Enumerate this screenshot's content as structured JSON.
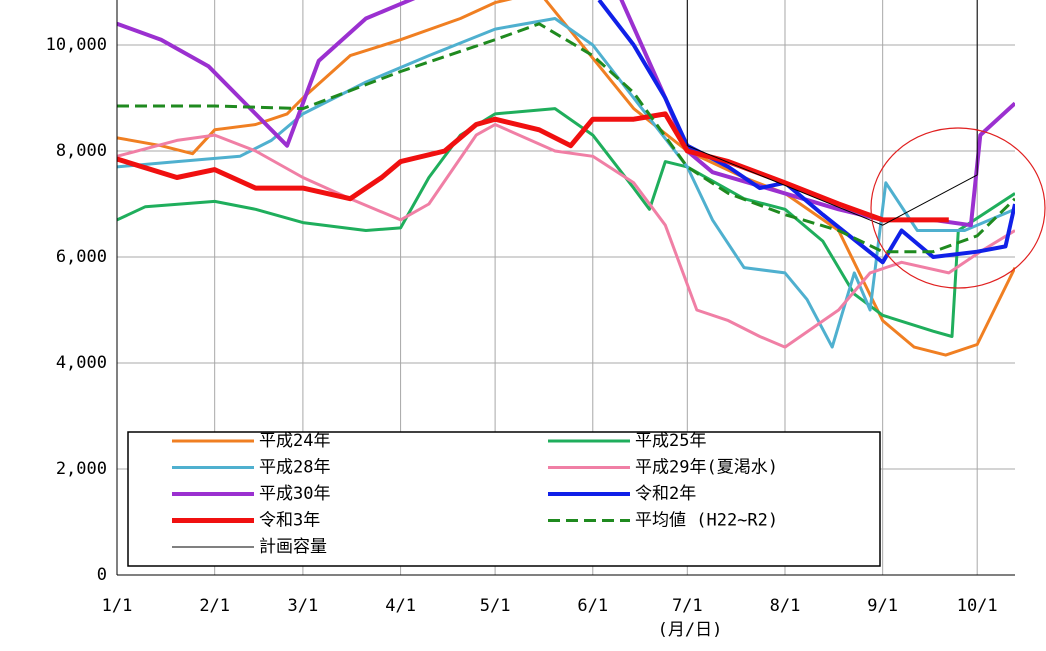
{
  "chart_data": {
    "type": "line",
    "x_unit_label": "(月/日)",
    "xlim": [
      1,
      286
    ],
    "xticks": [
      {
        "value": 1,
        "label": "1/1"
      },
      {
        "value": 32,
        "label": "2/1"
      },
      {
        "value": 60,
        "label": "3/1"
      },
      {
        "value": 91,
        "label": "4/1"
      },
      {
        "value": 121,
        "label": "5/1"
      },
      {
        "value": 152,
        "label": "6/1"
      },
      {
        "value": 182,
        "label": "7/1"
      },
      {
        "value": 213,
        "label": "8/1"
      },
      {
        "value": 244,
        "label": "9/1"
      },
      {
        "value": 274,
        "label": "10/1"
      }
    ],
    "ylim": [
      0,
      10850
    ],
    "yticks": [
      0,
      {
        "value": 2000,
        "label": "2,000"
      },
      {
        "value": 4000,
        "label": "4,000"
      },
      {
        "value": 6000,
        "label": "6,000"
      },
      {
        "value": 8000,
        "label": "8,000"
      },
      {
        "value": 10000,
        "label": "10,000"
      }
    ],
    "grid": true,
    "series": [
      {
        "name": "平成24年",
        "color": "#f07f22",
        "width": 3,
        "x": [
          1,
          15,
          25,
          32,
          45,
          55,
          60,
          75,
          91,
          110,
          121,
          135,
          165,
          182,
          200,
          213,
          230,
          244,
          254,
          264,
          274,
          286
        ],
        "values": [
          8250,
          8100,
          7950,
          8400,
          8500,
          8700,
          9000,
          9800,
          10100,
          10500,
          10800,
          11000,
          8800,
          8000,
          7500,
          7200,
          6500,
          4800,
          4300,
          4150,
          4350,
          5800
        ]
      },
      {
        "name": "平成25年",
        "color": "#1fae5c",
        "width": 3,
        "x": [
          1,
          10,
          32,
          45,
          60,
          80,
          91,
          100,
          110,
          121,
          140,
          152,
          165,
          170,
          175,
          182,
          200,
          213,
          225,
          235,
          244,
          260,
          266,
          268,
          286
        ],
        "values": [
          6700,
          6950,
          7050,
          6900,
          6650,
          6500,
          6550,
          7500,
          8300,
          8700,
          8800,
          8300,
          7300,
          6900,
          7800,
          7700,
          7100,
          6900,
          6300,
          5300,
          4900,
          4600,
          4500,
          6500,
          7200
        ]
      },
      {
        "name": "平成28年",
        "color": "#4fb0cf",
        "width": 3,
        "x": [
          1,
          20,
          40,
          50,
          60,
          80,
          100,
          121,
          140,
          152,
          165,
          182,
          190,
          200,
          213,
          220,
          228,
          235,
          240,
          245,
          255,
          270,
          286
        ],
        "values": [
          7700,
          7800,
          7900,
          8200,
          8700,
          9300,
          9800,
          10300,
          10500,
          10000,
          9000,
          7700,
          6700,
          5800,
          5700,
          5200,
          4300,
          5700,
          5000,
          7400,
          6500,
          6500,
          6900
        ]
      },
      {
        "name": "平成29年(夏渇水)",
        "color": "#f07fa5",
        "width": 3,
        "x": [
          1,
          20,
          32,
          45,
          60,
          75,
          91,
          100,
          115,
          121,
          140,
          152,
          165,
          175,
          185,
          195,
          205,
          213,
          230,
          240,
          250,
          265,
          275,
          286
        ],
        "values": [
          7900,
          8200,
          8300,
          8000,
          7500,
          7100,
          6700,
          7000,
          8300,
          8500,
          8000,
          7900,
          7400,
          6600,
          5000,
          4800,
          4500,
          4300,
          5000,
          5700,
          5900,
          5700,
          6100,
          6500
        ]
      },
      {
        "name": "平成30年",
        "color": "#9b30d0",
        "width": 4,
        "x": [
          1,
          15,
          30,
          45,
          55,
          65,
          80,
          100,
          160,
          175,
          182,
          190,
          213,
          230,
          244,
          260,
          272,
          275,
          286
        ],
        "values": [
          10400,
          10100,
          9600,
          8700,
          8100,
          9700,
          10500,
          11000,
          11000,
          9000,
          8000,
          7600,
          7200,
          6900,
          6700,
          6700,
          6600,
          8300,
          8900
        ]
      },
      {
        "name": "令和2年",
        "color": "#1020e8",
        "width": 4,
        "x": [
          154,
          165,
          175,
          182,
          195,
          205,
          213,
          225,
          244,
          250,
          260,
          274,
          283,
          286
        ],
        "values": [
          10850,
          10000,
          9000,
          8100,
          7700,
          7300,
          7400,
          6800,
          5900,
          6500,
          6000,
          6100,
          6200,
          7000
        ]
      },
      {
        "name": "令和3年",
        "color": "#f01010",
        "width": 5,
        "x": [
          1,
          20,
          32,
          45,
          60,
          75,
          85,
          91,
          105,
          115,
          121,
          135,
          145,
          152,
          165,
          175,
          182,
          195,
          213,
          230,
          244,
          260,
          265
        ],
        "values": [
          7850,
          7500,
          7650,
          7300,
          7300,
          7100,
          7500,
          7800,
          8000,
          8500,
          8600,
          8400,
          8100,
          8600,
          8600,
          8700,
          8000,
          7800,
          7400,
          7000,
          6700,
          6700,
          6700
        ]
      },
      {
        "name": "平均値 (H22~R2)",
        "color": "#1f8a1f",
        "width": 3,
        "dashed": true,
        "x": [
          1,
          32,
          60,
          91,
          121,
          135,
          152,
          165,
          182,
          195,
          213,
          230,
          244,
          260,
          274,
          286
        ],
        "values": [
          8850,
          8850,
          8800,
          9500,
          10100,
          10400,
          9800,
          9100,
          7700,
          7200,
          6800,
          6500,
          6100,
          6100,
          6400,
          7100
        ]
      },
      {
        "name": "計画容量",
        "color": "#000000",
        "width": 1,
        "x": [
          182,
          182,
          244,
          274,
          274
        ],
        "values": [
          10850,
          8100,
          6600,
          7550,
          10850
        ]
      }
    ]
  }
}
